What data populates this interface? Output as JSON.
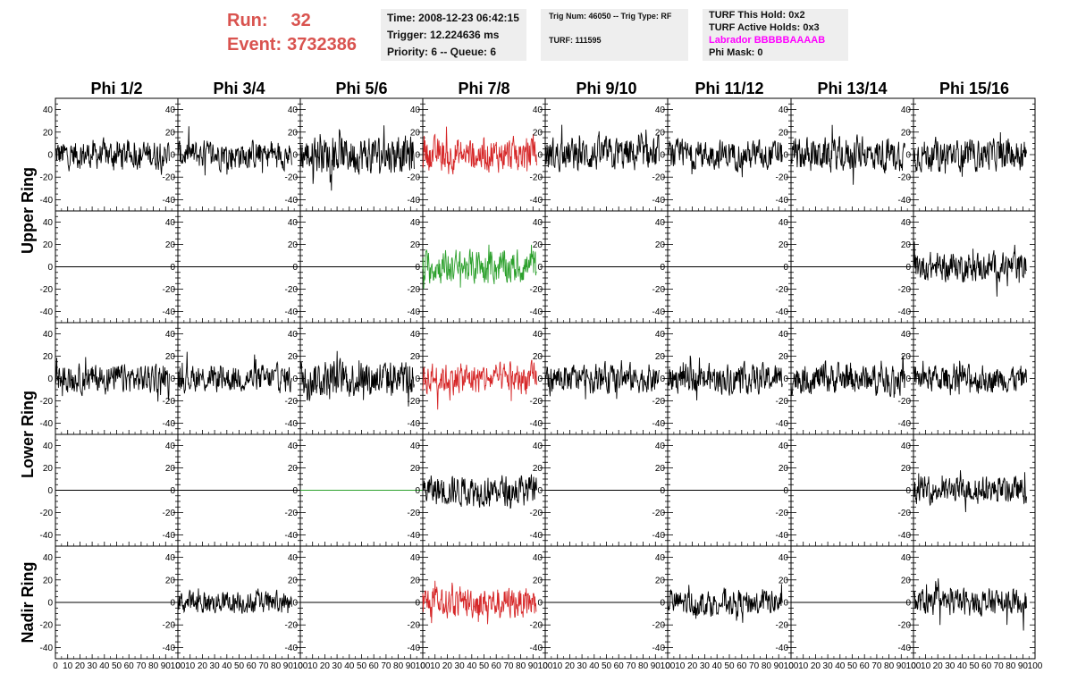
{
  "header": {
    "run_label": "Run:",
    "run_value": "32",
    "event_label": "Event:",
    "event_value": "3732386"
  },
  "info_box1": {
    "line1": "Time: 2008-12-23 06:42:15",
    "line2": "Trigger: 12.224636 ms",
    "line3": "Priority: 6 -- Queue: 6"
  },
  "info_box2": {
    "line1": "Trig Num: 46050 -- Trig Type: RF",
    "line2": "TURF: 111595"
  },
  "info_box3": {
    "line1": "TURF This Hold: 0x2",
    "line2": "TURF Active Holds: 0x3",
    "line3": "Labrador BBBBBAAAAB",
    "line4": "Phi Mask: 0"
  },
  "colors": {
    "header_red": "#d9534f",
    "trace_black": "#000000",
    "trace_red": "#d62728",
    "trace_green": "#2ca02c",
    "labrador_magenta": "#ff00ff"
  },
  "chart_data": {
    "type": "line",
    "columns": [
      "Phi 1/2",
      "Phi 3/4",
      "Phi 5/6",
      "Phi 7/8",
      "Phi 9/10",
      "Phi 11/12",
      "Phi 13/14",
      "Phi 15/16"
    ],
    "row_groups": [
      "Upper Ring",
      "Lower Ring",
      "Nadir Ring"
    ],
    "ylim": [
      -50,
      50
    ],
    "y_ticks": [
      -40,
      -20,
      0,
      20,
      40
    ],
    "xlim": [
      0,
      100
    ],
    "x_ticks": [
      0,
      10,
      20,
      30,
      40,
      50,
      60,
      70,
      80,
      90,
      100
    ],
    "x_tick_labels": [
      "0",
      "10",
      "20",
      "30",
      "40",
      "50",
      "60",
      "70",
      "80",
      "90",
      "100"
    ],
    "x_tick_labels_last_panel": [
      "0",
      "10",
      "20",
      "30",
      "40",
      "50",
      "60",
      "70",
      "80",
      "90",
      "100"
    ],
    "trace_span": [
      0,
      93
    ],
    "rows": [
      {
        "group": "Upper Ring",
        "panels": [
          {
            "kind": "noise",
            "amplitude": 13,
            "color": "black"
          },
          {
            "kind": "noise",
            "amplitude": 13,
            "color": "black"
          },
          {
            "kind": "noise",
            "amplitude": 17,
            "color": "black"
          },
          {
            "kind": "noise",
            "amplitude": 15,
            "color": "red"
          },
          {
            "kind": "noise",
            "amplitude": 15,
            "color": "black"
          },
          {
            "kind": "noise",
            "amplitude": 13,
            "color": "black"
          },
          {
            "kind": "noise",
            "amplitude": 15,
            "color": "black"
          },
          {
            "kind": "noise",
            "amplitude": 14,
            "color": "black"
          }
        ]
      },
      {
        "group": "Upper Ring",
        "panels": [
          {
            "kind": "flat",
            "value": 0,
            "color": "black"
          },
          {
            "kind": "flat",
            "value": 0,
            "color": "black"
          },
          {
            "kind": "flat",
            "value": 0,
            "color": "black"
          },
          {
            "kind": "noise",
            "amplitude": 15,
            "color": "green"
          },
          {
            "kind": "flat",
            "value": 0,
            "color": "black"
          },
          {
            "kind": "flat",
            "value": 0,
            "color": "black"
          },
          {
            "kind": "flat",
            "value": 0,
            "color": "black"
          },
          {
            "kind": "noise",
            "amplitude": 13,
            "color": "black"
          }
        ]
      },
      {
        "group": "Lower Ring",
        "panels": [
          {
            "kind": "noise",
            "amplitude": 13,
            "color": "black"
          },
          {
            "kind": "noise",
            "amplitude": 12,
            "color": "black"
          },
          {
            "kind": "noise",
            "amplitude": 17,
            "color": "black"
          },
          {
            "kind": "noise",
            "amplitude": 14,
            "color": "red"
          },
          {
            "kind": "noise",
            "amplitude": 13,
            "color": "black"
          },
          {
            "kind": "noise",
            "amplitude": 13,
            "color": "black"
          },
          {
            "kind": "noise",
            "amplitude": 14,
            "color": "black"
          },
          {
            "kind": "noise",
            "amplitude": 12,
            "color": "black"
          }
        ]
      },
      {
        "group": "Lower Ring",
        "panels": [
          {
            "kind": "flat",
            "value": 0,
            "color": "black"
          },
          {
            "kind": "flat",
            "value": 0,
            "color": "black"
          },
          {
            "kind": "flat",
            "value": 0,
            "color": "green"
          },
          {
            "kind": "noise",
            "amplitude": 14,
            "color": "black"
          },
          {
            "kind": "flat",
            "value": 0,
            "color": "black"
          },
          {
            "kind": "flat",
            "value": 0,
            "color": "black"
          },
          {
            "kind": "flat",
            "value": 0,
            "color": "black"
          },
          {
            "kind": "noise",
            "amplitude": 12,
            "color": "black"
          }
        ]
      },
      {
        "group": "Nadir Ring",
        "panels": [
          {
            "kind": "flat",
            "value": 0,
            "color": "black"
          },
          {
            "kind": "noise",
            "amplitude": 10,
            "color": "black"
          },
          {
            "kind": "flat",
            "value": 0,
            "color": "black"
          },
          {
            "kind": "noise",
            "amplitude": 14,
            "color": "red"
          },
          {
            "kind": "flat",
            "value": 0,
            "color": "black"
          },
          {
            "kind": "noise",
            "amplitude": 12,
            "color": "black"
          },
          {
            "kind": "flat",
            "value": 0,
            "color": "black"
          },
          {
            "kind": "noise",
            "amplitude": 12,
            "color": "black"
          }
        ]
      }
    ]
  }
}
